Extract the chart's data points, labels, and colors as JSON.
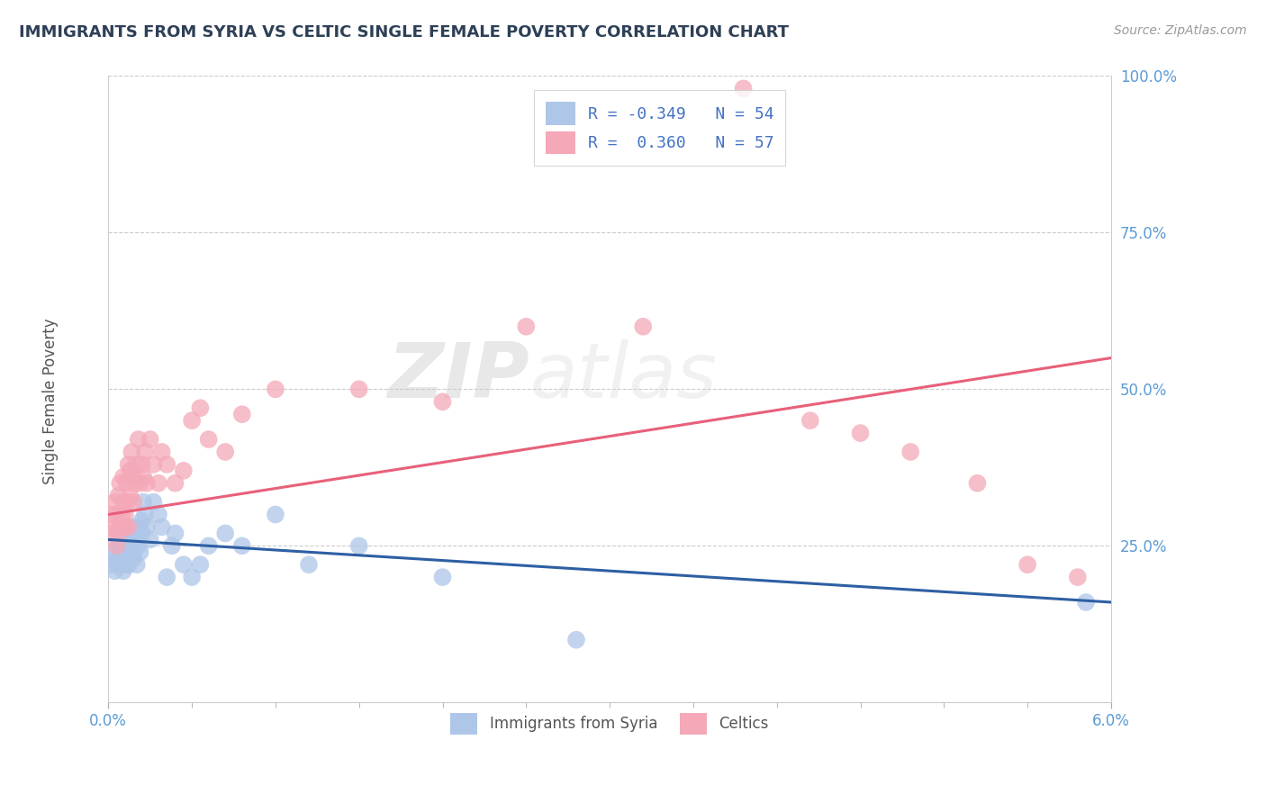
{
  "title": "IMMIGRANTS FROM SYRIA VS CELTIC SINGLE FEMALE POVERTY CORRELATION CHART",
  "source": "Source: ZipAtlas.com",
  "ylabel": "Single Female Poverty",
  "xlim": [
    0.0,
    6.0
  ],
  "ylim": [
    0.0,
    100.0
  ],
  "yticks": [
    0,
    25,
    50,
    75,
    100
  ],
  "ytick_labels": [
    "",
    "25.0%",
    "50.0%",
    "75.0%",
    "100.0%"
  ],
  "xtick_color": "#5b9bd5",
  "ytick_color": "#5b9bd5",
  "syria_color": "#aec6e8",
  "celtic_color": "#f4a8b8",
  "syria_line_color": "#2e5fa3",
  "celtic_line_color": "#e8607a",
  "legend_R_syria": "R = -0.349",
  "legend_N_syria": "N = 54",
  "legend_R_celtic": "R =  0.360",
  "legend_N_celtic": "N = 57",
  "watermark_zip": "ZIP",
  "watermark_atlas": "atlas",
  "syria_scatter_x": [
    0.02,
    0.03,
    0.04,
    0.05,
    0.06,
    0.06,
    0.07,
    0.07,
    0.08,
    0.08,
    0.09,
    0.09,
    0.1,
    0.1,
    0.11,
    0.11,
    0.12,
    0.12,
    0.13,
    0.13,
    0.14,
    0.14,
    0.15,
    0.15,
    0.16,
    0.17,
    0.17,
    0.18,
    0.18,
    0.19,
    0.2,
    0.2,
    0.21,
    0.22,
    0.23,
    0.25,
    0.27,
    0.3,
    0.32,
    0.35,
    0.38,
    0.4,
    0.45,
    0.5,
    0.55,
    0.6,
    0.7,
    0.8,
    1.0,
    1.2,
    1.5,
    2.0,
    2.8,
    5.85
  ],
  "syria_scatter_y": [
    22,
    24,
    21,
    23,
    25,
    22,
    26,
    23,
    22,
    25,
    21,
    24,
    23,
    26,
    22,
    25,
    24,
    22,
    27,
    25,
    26,
    24,
    23,
    28,
    27,
    26,
    22,
    25,
    28,
    24,
    27,
    29,
    32,
    30,
    28,
    26,
    32,
    30,
    28,
    20,
    25,
    27,
    22,
    20,
    22,
    25,
    27,
    25,
    30,
    22,
    25,
    20,
    10,
    16
  ],
  "celtic_scatter_x": [
    0.02,
    0.02,
    0.03,
    0.04,
    0.05,
    0.05,
    0.06,
    0.06,
    0.07,
    0.07,
    0.08,
    0.08,
    0.09,
    0.09,
    0.1,
    0.1,
    0.11,
    0.11,
    0.12,
    0.12,
    0.13,
    0.13,
    0.14,
    0.15,
    0.15,
    0.16,
    0.17,
    0.18,
    0.19,
    0.2,
    0.21,
    0.22,
    0.23,
    0.25,
    0.27,
    0.3,
    0.32,
    0.35,
    0.4,
    0.45,
    0.5,
    0.55,
    0.6,
    0.7,
    0.8,
    1.0,
    1.5,
    2.0,
    2.5,
    3.2,
    3.8,
    4.2,
    4.8,
    5.2,
    5.5,
    5.8,
    4.5
  ],
  "celtic_scatter_y": [
    27,
    30,
    28,
    32,
    25,
    30,
    27,
    33,
    28,
    35,
    30,
    28,
    32,
    36,
    30,
    28,
    35,
    32,
    28,
    38,
    33,
    37,
    40,
    32,
    36,
    35,
    38,
    42,
    35,
    38,
    36,
    40,
    35,
    42,
    38,
    35,
    40,
    38,
    35,
    37,
    45,
    47,
    42,
    40,
    46,
    50,
    50,
    48,
    60,
    60,
    98,
    45,
    40,
    35,
    22,
    20,
    43
  ]
}
